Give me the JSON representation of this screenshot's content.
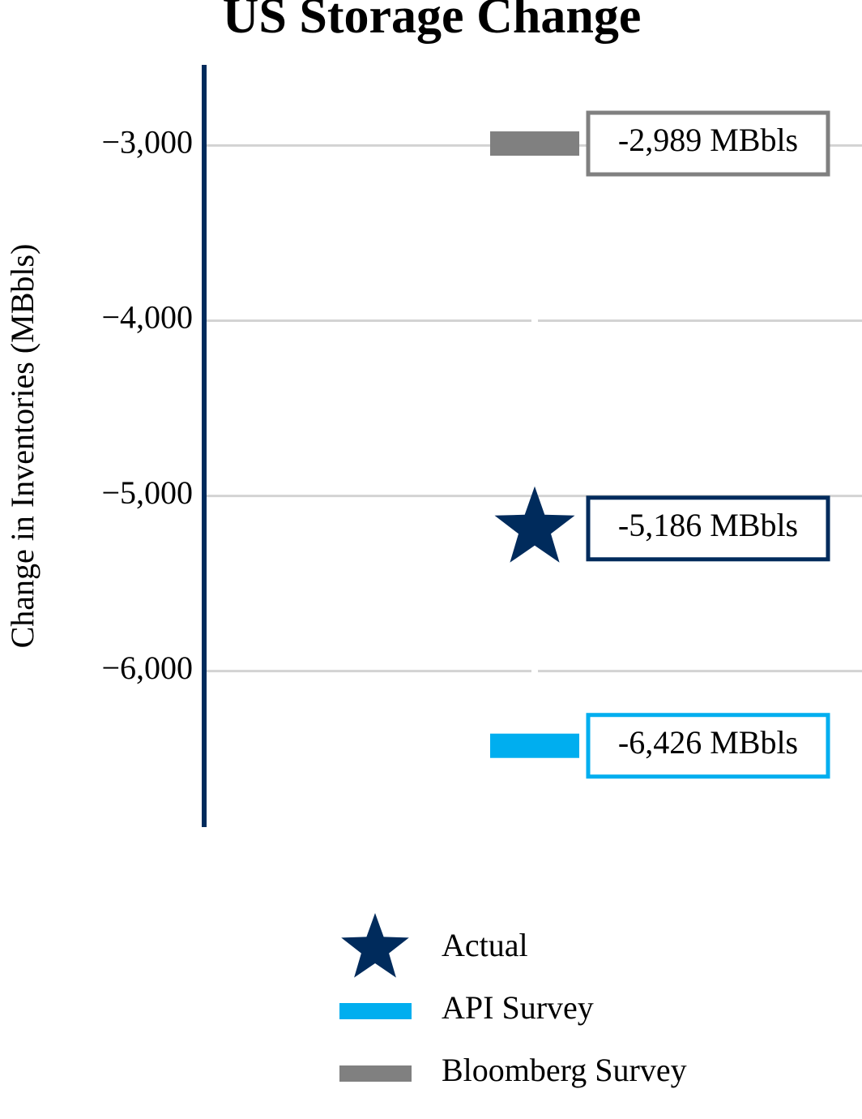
{
  "chart_data": {
    "type": "scatter",
    "title": "US Storage Change",
    "y_label": "Change in Inventories (MBbls)",
    "ylim": [
      -6890,
      -2540
    ],
    "yticks": [
      {
        "value": -3000,
        "label": "−3,000"
      },
      {
        "value": -4000,
        "label": "−4,000"
      },
      {
        "value": -5000,
        "label": "−5,000"
      },
      {
        "value": -6000,
        "label": "−6,000"
      }
    ],
    "grid": true,
    "series": [
      {
        "name": "Actual",
        "color": "#002b5c",
        "marker": "star",
        "values": [
          -5186
        ],
        "value_labels": [
          "-5,186 MBbls"
        ]
      },
      {
        "name": "API Survey",
        "color": "#00aeef",
        "marker": "bar",
        "values": [
          -6426
        ],
        "value_labels": [
          "-6,426 MBbls"
        ]
      },
      {
        "name": "Bloomberg Survey",
        "color": "#808080",
        "marker": "bar",
        "values": [
          -2989
        ],
        "value_labels": [
          "-2,989 MBbls"
        ]
      }
    ]
  }
}
